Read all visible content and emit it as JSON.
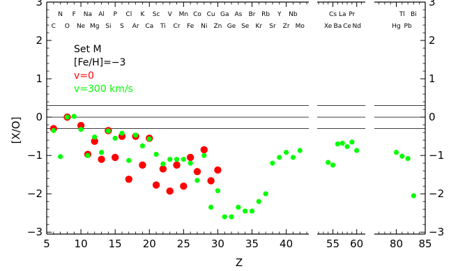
{
  "chart_data": {
    "type": "scatter",
    "title": "",
    "xlabel": "Z",
    "ylabel": "[X/O]",
    "ylim": [
      -3.05,
      3
    ],
    "yticks": [
      -3,
      -2,
      -1,
      0,
      1,
      2,
      3
    ],
    "reference_lines": [
      0.3,
      0,
      -0.3
    ],
    "panels": [
      {
        "xlim": [
          5,
          43.3
        ],
        "xticks": [
          5,
          10,
          15,
          20,
          25,
          30,
          35,
          40
        ]
      },
      {
        "xlim": [
          51.7,
          61.8
        ],
        "xticks": [
          55,
          60
        ]
      },
      {
        "xlim": [
          76.2,
          85
        ],
        "xticks": [
          80,
          85
        ]
      }
    ],
    "legend": {
      "placement": "top-left",
      "lines": [
        {
          "text": "Set M",
          "color": "#000000"
        },
        {
          "text": "[Fe/H]=−3",
          "color": "#000000"
        },
        {
          "text": "v=0",
          "color": "#ff0000"
        },
        {
          "text": "v=300 km/s",
          "color": "#00ff00"
        }
      ]
    },
    "element_labels": {
      "top_row": [
        {
          "z": 7,
          "text": "N"
        },
        {
          "z": 9,
          "text": "F"
        },
        {
          "z": 11,
          "text": "Na"
        },
        {
          "z": 13,
          "text": "Al"
        },
        {
          "z": 15,
          "text": "P"
        },
        {
          "z": 17,
          "text": "Cl"
        },
        {
          "z": 19,
          "text": "K"
        },
        {
          "z": 21,
          "text": "Sc"
        },
        {
          "z": 23,
          "text": "V"
        },
        {
          "z": 25,
          "text": "Mn"
        },
        {
          "z": 27,
          "text": "Co"
        },
        {
          "z": 29,
          "text": "Cu"
        },
        {
          "z": 31,
          "text": "Ga"
        },
        {
          "z": 33,
          "text": "As"
        },
        {
          "z": 35,
          "text": "Br"
        },
        {
          "z": 37,
          "text": "Rb"
        },
        {
          "z": 39,
          "text": "Y"
        },
        {
          "z": 41,
          "text": "Nb"
        },
        {
          "z": 55,
          "text": "Cs"
        },
        {
          "z": 57,
          "text": "La"
        },
        {
          "z": 59,
          "text": "Pr"
        },
        {
          "z": 81,
          "text": "Tl"
        },
        {
          "z": 83,
          "text": "Bi"
        }
      ],
      "bottom_row": [
        {
          "z": 6,
          "text": "C"
        },
        {
          "z": 8,
          "text": "O"
        },
        {
          "z": 10,
          "text": "Ne"
        },
        {
          "z": 12,
          "text": "Mg"
        },
        {
          "z": 14,
          "text": "Si"
        },
        {
          "z": 16,
          "text": "S"
        },
        {
          "z": 18,
          "text": "Ar"
        },
        {
          "z": 20,
          "text": "Ca"
        },
        {
          "z": 22,
          "text": "Ti"
        },
        {
          "z": 24,
          "text": "Cr"
        },
        {
          "z": 26,
          "text": "Fe"
        },
        {
          "z": 28,
          "text": "Ni"
        },
        {
          "z": 30,
          "text": "Zn"
        },
        {
          "z": 32,
          "text": "Ge"
        },
        {
          "z": 34,
          "text": "Se"
        },
        {
          "z": 36,
          "text": "Kr"
        },
        {
          "z": 38,
          "text": "Sr"
        },
        {
          "z": 40,
          "text": "Zr"
        },
        {
          "z": 42,
          "text": "Mo"
        },
        {
          "z": 54,
          "text": "Xe"
        },
        {
          "z": 56,
          "text": "Ba"
        },
        {
          "z": 58,
          "text": "Ce"
        },
        {
          "z": 60,
          "text": "Nd"
        },
        {
          "z": 80,
          "text": "Hg"
        },
        {
          "z": 82,
          "text": "Pb"
        }
      ]
    },
    "series": [
      {
        "name": "v=0",
        "color": "#ff0000",
        "marker_size": "large",
        "points": [
          [
            6,
            -0.3
          ],
          [
            8,
            0.0
          ],
          [
            10,
            -0.22
          ],
          [
            11,
            -0.97
          ],
          [
            12,
            -0.63
          ],
          [
            13,
            -1.1
          ],
          [
            14,
            -0.35
          ],
          [
            15,
            -1.05
          ],
          [
            16,
            -0.5
          ],
          [
            17,
            -1.62
          ],
          [
            18,
            -0.5
          ],
          [
            19,
            -1.25
          ],
          [
            20,
            -0.55
          ],
          [
            21,
            -1.77
          ],
          [
            22,
            -1.35
          ],
          [
            23,
            -1.93
          ],
          [
            24,
            -1.25
          ],
          [
            25,
            -1.8
          ],
          [
            26,
            -1.05
          ],
          [
            27,
            -1.42
          ],
          [
            28,
            -0.85
          ],
          [
            29,
            -1.66
          ],
          [
            30,
            -1.38
          ]
        ]
      },
      {
        "name": "v=300 km/s",
        "color": "#00ff00",
        "marker_size": "small",
        "points": [
          [
            6,
            -0.35
          ],
          [
            7,
            -1.03
          ],
          [
            8,
            0.0
          ],
          [
            9,
            0.02
          ],
          [
            10,
            -0.32
          ],
          [
            11,
            -1.0
          ],
          [
            12,
            -0.52
          ],
          [
            13,
            -0.92
          ],
          [
            14,
            -0.36
          ],
          [
            15,
            -0.55
          ],
          [
            16,
            -0.42
          ],
          [
            17,
            -1.13
          ],
          [
            18,
            -0.47
          ],
          [
            19,
            -0.75
          ],
          [
            20,
            -0.57
          ],
          [
            21,
            -0.97
          ],
          [
            22,
            -1.22
          ],
          [
            23,
            -1.1
          ],
          [
            24,
            -1.1
          ],
          [
            25,
            -1.1
          ],
          [
            26,
            -1.2
          ],
          [
            27,
            -1.65
          ],
          [
            28,
            -1.0
          ],
          [
            29,
            -2.35
          ],
          [
            30,
            -1.92
          ],
          [
            31,
            -2.6
          ],
          [
            32,
            -2.6
          ],
          [
            33,
            -2.35
          ],
          [
            34,
            -2.45
          ],
          [
            35,
            -2.45
          ],
          [
            36,
            -2.2
          ],
          [
            37,
            -2.0
          ],
          [
            38,
            -1.2
          ],
          [
            39,
            -1.05
          ],
          [
            40,
            -0.92
          ],
          [
            41,
            -1.05
          ],
          [
            42,
            -0.87
          ],
          [
            54,
            -1.18
          ],
          [
            55,
            -1.25
          ],
          [
            56,
            -0.7
          ],
          [
            57,
            -0.68
          ],
          [
            58,
            -0.77
          ],
          [
            59,
            -0.65
          ],
          [
            60,
            -0.87
          ],
          [
            80,
            -0.92
          ],
          [
            81,
            -1.02
          ],
          [
            82,
            -1.08
          ],
          [
            83,
            -2.05
          ]
        ]
      }
    ]
  }
}
